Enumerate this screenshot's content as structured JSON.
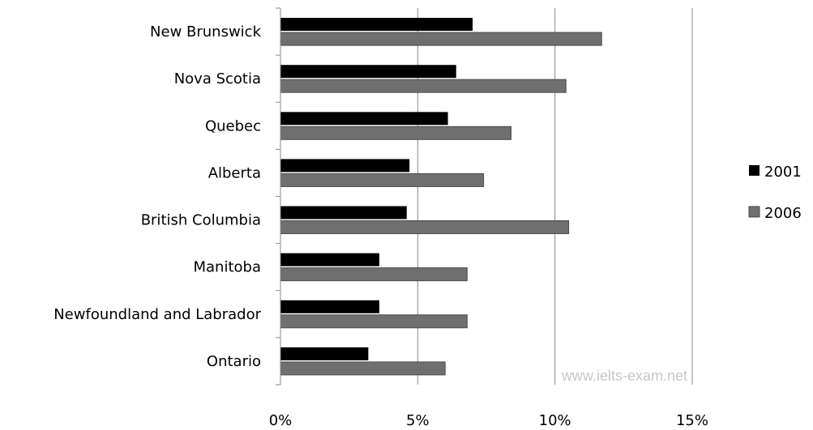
{
  "chart_data": {
    "type": "bar",
    "orientation": "horizontal",
    "categories": [
      "New Brunswick",
      "Nova Scotia",
      "Quebec",
      "Alberta",
      "British Columbia",
      "Manitoba",
      "Newfoundland and Labrador",
      "Ontario"
    ],
    "series": [
      {
        "name": "2001",
        "color": "#000000",
        "values": [
          7.0,
          6.4,
          6.1,
          4.7,
          4.6,
          3.6,
          3.6,
          3.2
        ]
      },
      {
        "name": "2006",
        "color": "#6f6f6f",
        "values": [
          11.7,
          10.4,
          8.4,
          7.4,
          10.5,
          6.8,
          6.8,
          6.0
        ]
      }
    ],
    "xlim": [
      0,
      15
    ],
    "x_ticks": [
      0,
      5,
      10,
      15
    ],
    "x_tick_labels": [
      "0%",
      "5%",
      "10%",
      "15%"
    ],
    "grid": "vertical",
    "legend_position": "right",
    "watermark": "www.ielts-exam.net"
  }
}
